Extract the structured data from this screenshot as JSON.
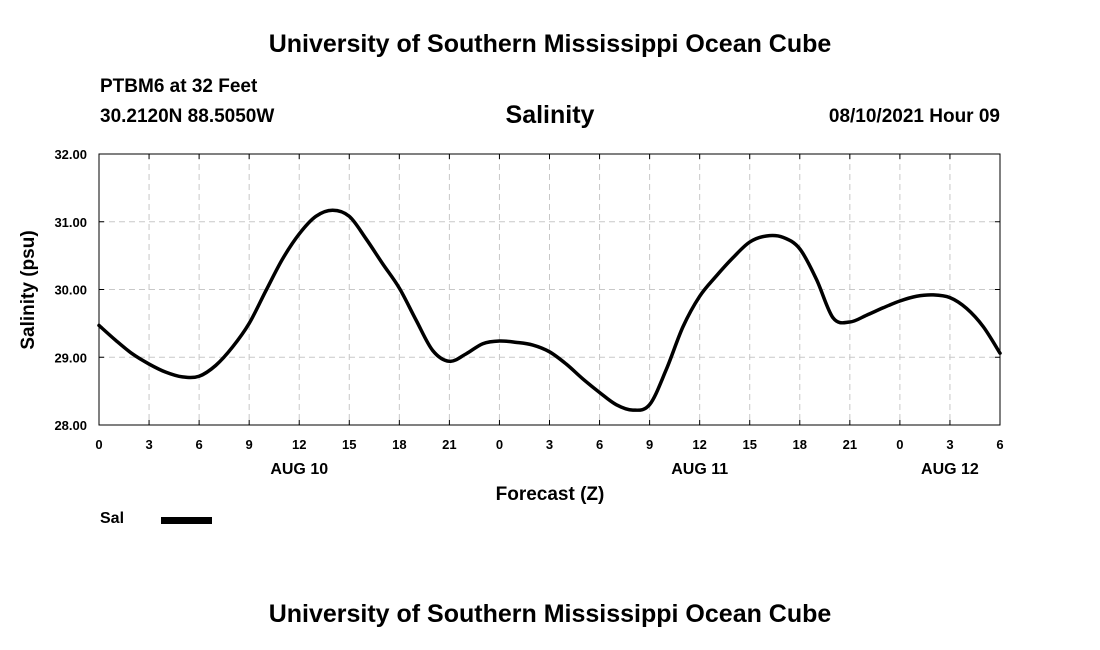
{
  "header": {
    "title": "University of Southern Mississippi Ocean Cube",
    "station": "PTBM6 at 32 Feet",
    "coords": "30.2120N  88.5050W",
    "timestamp": "08/10/2021 Hour 09"
  },
  "footer": {
    "title": "University of Southern Mississippi Ocean Cube"
  },
  "legend": {
    "label": "Sal"
  },
  "colors": {
    "line": "#000000",
    "grid": "#c8c8c8",
    "background": "#ffffff"
  },
  "chart_data": {
    "type": "line",
    "title": "Salinity",
    "xlabel": "Forecast (Z)",
    "ylabel": "Salinity (psu)",
    "xlim": [
      0,
      54
    ],
    "ylim": [
      28,
      32
    ],
    "x_ticks": [
      0,
      3,
      6,
      9,
      12,
      15,
      18,
      21,
      24,
      27,
      30,
      33,
      36,
      39,
      42,
      45,
      48,
      51,
      54
    ],
    "x_tick_labels": [
      "0",
      "3",
      "6",
      "9",
      "12",
      "15",
      "18",
      "21",
      "0",
      "3",
      "6",
      "9",
      "12",
      "15",
      "18",
      "21",
      "0",
      "3",
      "6"
    ],
    "y_ticks": [
      28,
      29,
      30,
      31,
      32
    ],
    "y_tick_labels": [
      "28.00",
      "29.00",
      "30.00",
      "31.00",
      "32.00"
    ],
    "day_labels": [
      {
        "x": 12,
        "label": "AUG 10"
      },
      {
        "x": 36,
        "label": "AUG 11"
      },
      {
        "x": 51,
        "label": "AUG 12"
      }
    ],
    "grid": true,
    "series": [
      {
        "name": "Sal",
        "x": [
          0,
          1,
          2,
          3,
          4,
          5,
          6,
          7,
          8,
          9,
          10,
          11,
          12,
          13,
          14,
          15,
          16,
          17,
          18,
          19,
          20,
          21,
          22,
          23,
          24,
          25,
          26,
          27,
          28,
          29,
          30,
          31,
          32,
          33,
          34,
          35,
          36,
          37,
          38,
          39,
          40,
          41,
          42,
          43,
          44,
          45,
          46,
          47,
          48,
          49,
          50,
          51,
          52,
          53,
          54
        ],
        "values": [
          29.47,
          29.25,
          29.05,
          28.9,
          28.78,
          28.71,
          28.72,
          28.88,
          29.15,
          29.5,
          29.98,
          30.45,
          30.82,
          31.08,
          31.17,
          31.08,
          30.75,
          30.38,
          30.02,
          29.55,
          29.1,
          28.94,
          29.05,
          29.2,
          29.24,
          29.22,
          29.18,
          29.08,
          28.9,
          28.68,
          28.48,
          28.3,
          28.22,
          28.3,
          28.82,
          29.45,
          29.9,
          30.2,
          30.47,
          30.7,
          30.79,
          30.77,
          30.6,
          30.15,
          29.58,
          29.52,
          29.62,
          29.73,
          29.83,
          29.9,
          29.92,
          29.88,
          29.72,
          29.45,
          29.06
        ]
      }
    ]
  }
}
